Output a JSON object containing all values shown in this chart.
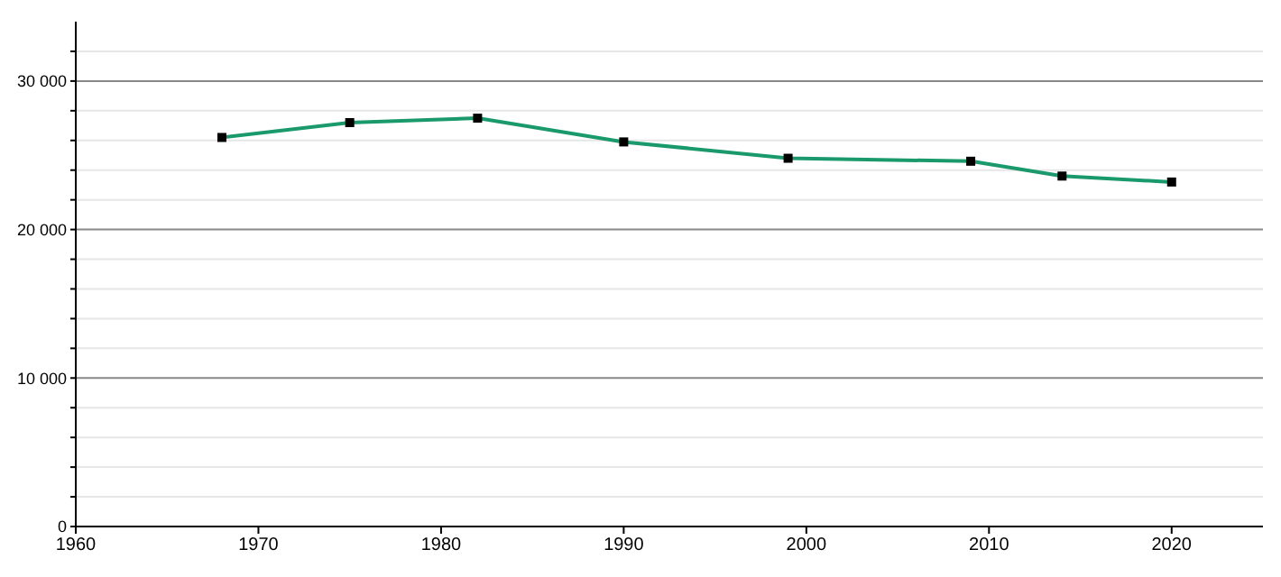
{
  "chart_data": {
    "type": "line",
    "x": [
      1968,
      1975,
      1982,
      1990,
      1999,
      2009,
      2014,
      2020
    ],
    "series": [
      {
        "color": "#1a9a6c",
        "values": [
          26200,
          27200,
          27500,
          25900,
          24800,
          24600,
          23600,
          23200
        ]
      }
    ],
    "xlim": [
      1960,
      2025
    ],
    "xticks": [
      1960,
      1970,
      1980,
      1990,
      2000,
      2010,
      2020
    ],
    "ylim": [
      0,
      34000
    ],
    "yticks": [
      0,
      {
        "value": 2000,
        "label": null
      },
      {
        "value": 4000,
        "label": null
      },
      {
        "value": 6000,
        "label": null
      },
      {
        "value": 8000,
        "label": null
      },
      {
        "value": 10000,
        "label": "10 000"
      },
      {
        "value": 12000,
        "label": null
      },
      {
        "value": 14000,
        "label": null
      },
      {
        "value": 16000,
        "label": null
      },
      {
        "value": 18000,
        "label": null
      },
      {
        "value": 20000,
        "label": "20 000"
      },
      {
        "value": 22000,
        "label": null
      },
      {
        "value": 24000,
        "label": null
      },
      {
        "value": 26000,
        "label": null
      },
      {
        "value": 28000,
        "label": null
      },
      {
        "value": 30000,
        "label": "30 000"
      },
      {
        "value": 32000,
        "label": null
      }
    ],
    "grid": "y",
    "marker": "square",
    "line_style": "solid"
  }
}
